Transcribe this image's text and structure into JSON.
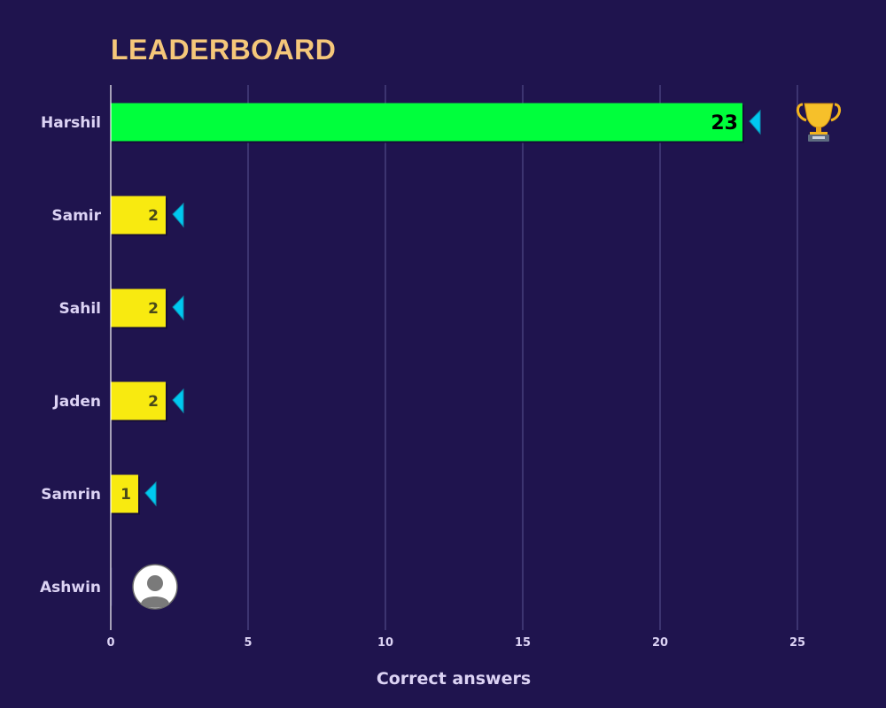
{
  "title": "LEADERBOARD",
  "chart_data": {
    "type": "bar",
    "orientation": "horizontal",
    "xlabel": "Correct answers",
    "ylabel": "",
    "xlim": [
      0,
      28
    ],
    "xticks": [
      0,
      5,
      10,
      15,
      20,
      25
    ],
    "grid": true,
    "categories": [
      "Harshil",
      "Samir",
      "Sahil",
      "Jaden",
      "Samrin",
      "Ashwin"
    ],
    "values": [
      23,
      2,
      2,
      2,
      1,
      0
    ],
    "value_labels": [
      "23",
      "2",
      "2",
      "2",
      "1",
      ""
    ],
    "leader_marker": "trophy-icon",
    "zero_value_marker": "avatar-placeholder-icon"
  },
  "colors": {
    "background": "#1f144e",
    "leader_bar": "#00ff3c",
    "bar": "#f8ea10",
    "arrow": "#00c8f0",
    "grid": "#3c3470",
    "title": "#f5c77a"
  }
}
